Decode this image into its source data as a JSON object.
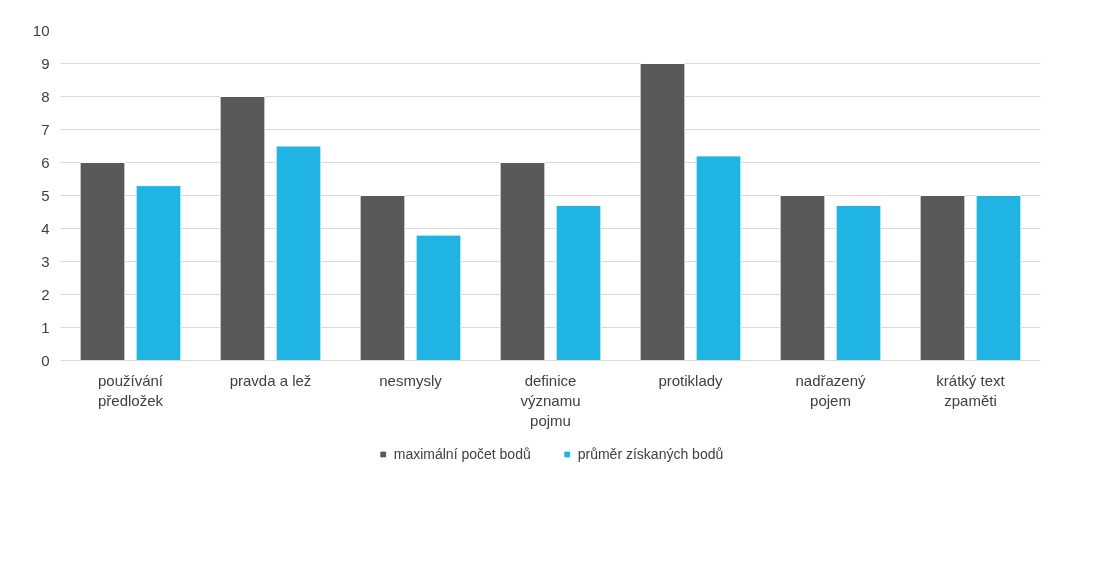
{
  "chart_data": {
    "type": "bar",
    "categories": [
      "používání předložek",
      "pravda a lež",
      "nesmysly",
      "definice významu pojmu",
      "protiklady",
      "nadřazený pojem",
      "krátký text zpaměti"
    ],
    "series": [
      {
        "name": "maximální počet bodů",
        "color": "#595959",
        "values": [
          6,
          8,
          5,
          6,
          9,
          5,
          5
        ]
      },
      {
        "name": "průměr získaných bodů",
        "color": "#1fb4e4",
        "values": [
          5.3,
          6.5,
          3.8,
          4.7,
          6.2,
          4.7,
          5.0
        ]
      }
    ],
    "ylim": [
      0,
      10
    ],
    "yticks": [
      0,
      1,
      2,
      3,
      4,
      5,
      6,
      7,
      8,
      9,
      10
    ],
    "grid": "y",
    "legend": "bottom"
  }
}
